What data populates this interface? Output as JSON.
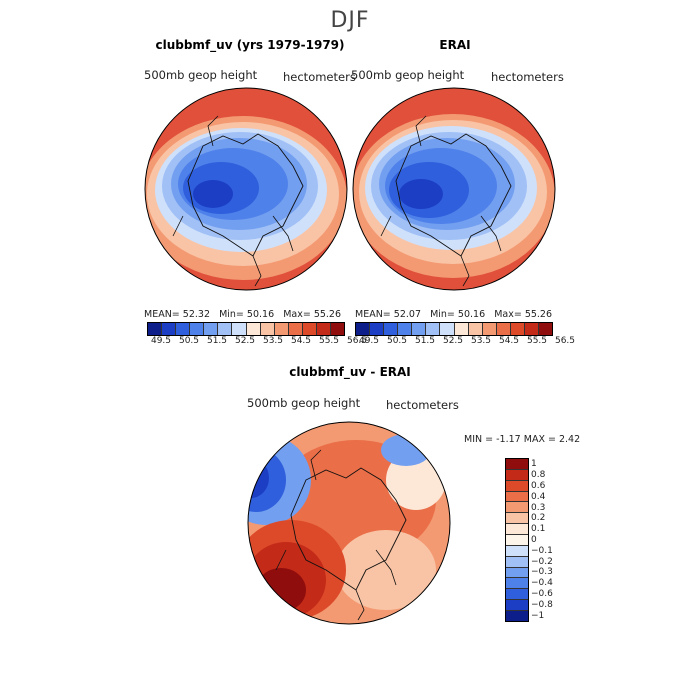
{
  "figure": {
    "title": "DJF"
  },
  "panels": [
    {
      "title": "clubbmf_uv (yrs 1979-1979)",
      "field": "500mb geop height",
      "units": "hectometers",
      "mean_label": "MEAN=",
      "mean": "52.32",
      "min_label": "Min=",
      "min": "50.16",
      "max_label": "Max=",
      "max": "55.26"
    },
    {
      "title": "ERAI",
      "field": "500mb geop height",
      "units": "hectometers",
      "mean_label": "MEAN=",
      "mean": "52.07",
      "min_label": "Min=",
      "min": "50.16",
      "max_label": "Max=",
      "max": "55.26"
    },
    {
      "title": "clubbmf_uv - ERAI",
      "field": "500mb geop height",
      "units": "hectometers",
      "min_label": "MIN =",
      "min": "-1.17",
      "max_label": "MAX =",
      "max": "2.42"
    }
  ],
  "colorbar_top": {
    "colors": [
      "#0d1d8a",
      "#1c3ec4",
      "#2f5fdc",
      "#4f81ea",
      "#739ff0",
      "#a0c0f6",
      "#cfe0fb",
      "#fde8d8",
      "#f9c4a5",
      "#f39a73",
      "#ea6e47",
      "#dd4a2a",
      "#c42a18",
      "#8f0d0d"
    ],
    "labels": [
      "49.5",
      "50.5",
      "51.5",
      "52.5",
      "53.5",
      "54.5",
      "55.5",
      "56.5"
    ]
  },
  "colorbar_diff": {
    "colors": [
      "#8f0d0d",
      "#c42a18",
      "#dd4a2a",
      "#ea6e47",
      "#f39a73",
      "#f9c4a5",
      "#fde8d8",
      "#fdf4ea",
      "#cfe0fb",
      "#a0c0f6",
      "#739ff0",
      "#4f81ea",
      "#2f5fdc",
      "#1c3ec4",
      "#0d1d8a"
    ],
    "labels": [
      "1",
      "0.8",
      "0.6",
      "0.4",
      "0.3",
      "0.2",
      "0.1",
      "0",
      "−0.1",
      "−0.2",
      "−0.3",
      "−0.4",
      "−0.6",
      "−0.8",
      "−1"
    ]
  },
  "chart_data": [
    {
      "type": "heatmap",
      "title": "clubbmf_uv (yrs 1979-1979)",
      "variable": "500mb geop height",
      "units": "hectometers",
      "projection": "north polar stereographic",
      "mean": 52.32,
      "min": 50.16,
      "max": 55.26,
      "contour_levels": [
        49.5,
        50.5,
        51.5,
        52.5,
        53.5,
        54.5,
        55.5,
        56.5
      ]
    },
    {
      "type": "heatmap",
      "title": "ERAI",
      "variable": "500mb geop height",
      "units": "hectometers",
      "projection": "north polar stereographic",
      "mean": 52.07,
      "min": 50.16,
      "max": 55.26,
      "contour_levels": [
        49.5,
        50.5,
        51.5,
        52.5,
        53.5,
        54.5,
        55.5,
        56.5
      ]
    },
    {
      "type": "heatmap",
      "title": "clubbmf_uv - ERAI",
      "variable": "500mb geop height",
      "units": "hectometers",
      "projection": "north polar stereographic",
      "min": -1.17,
      "max": 2.42,
      "contour_levels": [
        -1,
        -0.8,
        -0.6,
        -0.4,
        -0.3,
        -0.2,
        -0.1,
        0,
        0.1,
        0.2,
        0.3,
        0.4,
        0.6,
        0.8,
        1
      ]
    }
  ]
}
